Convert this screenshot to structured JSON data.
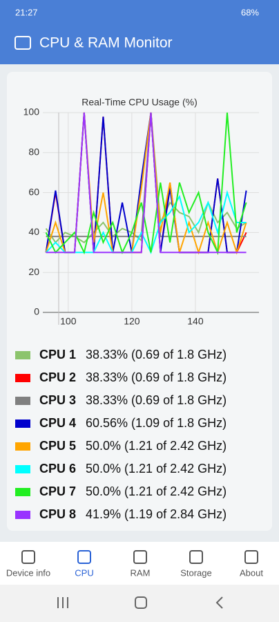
{
  "status_bar": {
    "time": "21:27",
    "battery": "68%"
  },
  "app_bar": {
    "title": "CPU & RAM Monitor"
  },
  "chart_data": {
    "type": "line",
    "title": "Real-Time CPU Usage (%)",
    "x": [
      93,
      96,
      99,
      102,
      105,
      108,
      111,
      114,
      117,
      120,
      123,
      126,
      129,
      132,
      135,
      138,
      141,
      144,
      147,
      150,
      153,
      156
    ],
    "xlim": [
      92,
      160
    ],
    "xticks": [
      100,
      120,
      140
    ],
    "ylim": [
      0,
      100
    ],
    "yticks": [
      0,
      20,
      40,
      60,
      80,
      100
    ],
    "grid": true,
    "series": [
      {
        "name": "CPU 1",
        "info": "38.33% (0.69 of 1.8 GHz)",
        "color": "#8cc46c",
        "values": [
          42,
          35,
          40,
          38,
          35,
          40,
          45,
          38,
          42,
          40,
          36,
          100,
          45,
          55,
          50,
          48,
          40,
          55,
          45,
          50,
          42,
          45
        ]
      },
      {
        "name": "CPU 2",
        "info": "38.33% (0.69 of 1.8 GHz)",
        "color": "#ff0000",
        "values": [
          30,
          60,
          30,
          30,
          100,
          30,
          98,
          30,
          30,
          30,
          30,
          100,
          30,
          65,
          30,
          30,
          30,
          30,
          67,
          30,
          30,
          40
        ]
      },
      {
        "name": "CPU 3",
        "info": "38.33% (0.69 of 1.8 GHz)",
        "color": "#808080",
        "values": [
          38,
          38,
          38,
          38,
          38,
          38,
          38,
          38,
          38,
          38,
          38,
          100,
          38,
          38,
          38,
          38,
          38,
          38,
          38,
          38,
          38,
          38
        ]
      },
      {
        "name": "CPU 4",
        "info": "60.56% (1.09 of 1.8 GHz)",
        "color": "#0000cc",
        "values": [
          30,
          61,
          30,
          30,
          100,
          30,
          98,
          30,
          55,
          30,
          67,
          100,
          30,
          62,
          30,
          30,
          30,
          30,
          67,
          30,
          30,
          61
        ]
      },
      {
        "name": "CPU 5",
        "info": "50.0% (1.21 of 2.42 GHz)",
        "color": "#ffa500",
        "values": [
          30,
          45,
          30,
          30,
          100,
          35,
          60,
          30,
          30,
          30,
          62,
          100,
          40,
          65,
          30,
          45,
          30,
          45,
          30,
          45,
          30,
          45
        ]
      },
      {
        "name": "CPU 6",
        "info": "50.0% (1.21 of 2.42 GHz)",
        "color": "#00ffff",
        "values": [
          30,
          35,
          30,
          30,
          30,
          30,
          40,
          30,
          30,
          30,
          40,
          30,
          45,
          50,
          58,
          40,
          45,
          55,
          40,
          60,
          45,
          45
        ]
      },
      {
        "name": "CPU 7",
        "info": "50.0% (1.21 of 2.42 GHz)",
        "color": "#22ee22",
        "values": [
          40,
          30,
          35,
          40,
          30,
          50,
          35,
          45,
          30,
          40,
          55,
          30,
          65,
          35,
          65,
          50,
          60,
          40,
          30,
          100,
          40,
          55
        ]
      },
      {
        "name": "CPU 8",
        "info": "41.9% (1.19 of 2.84 GHz)",
        "color": "#9933ff",
        "values": [
          30,
          30,
          30,
          30,
          100,
          30,
          30,
          30,
          30,
          30,
          30,
          100,
          30,
          30,
          30,
          30,
          30,
          30,
          30,
          30,
          30,
          30
        ]
      }
    ]
  },
  "nav": {
    "items": [
      "Device info",
      "CPU",
      "RAM",
      "Storage",
      "About"
    ]
  }
}
